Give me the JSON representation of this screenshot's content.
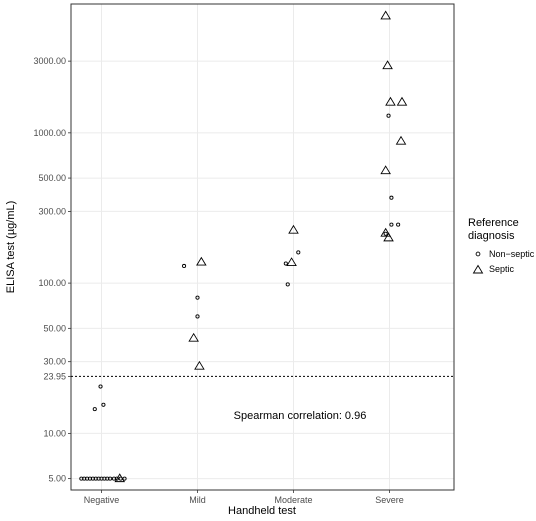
{
  "chart_data": {
    "type": "scatter",
    "xlabel": "Handheld test",
    "ylabel": "ELISA test (µg/mL)",
    "categories": [
      "Negative",
      "Mild",
      "Moderate",
      "Severe"
    ],
    "y_scale": "log10",
    "ylim": [
      4.2,
      7200
    ],
    "y_ticks": [
      5,
      10,
      30,
      50,
      100,
      300,
      500,
      1000,
      3000
    ],
    "y_tick_labels": [
      "5.00",
      "10.00",
      "30.00",
      "50.00",
      "100.00",
      "300.00",
      "500.00",
      "1000.00",
      "3000.00"
    ],
    "threshold": {
      "value": 23.95,
      "label": "23.95",
      "style": "dotted"
    },
    "grid": true,
    "annotation": "Spearman correlation: 0.96",
    "legend": {
      "title_lines": [
        "Reference",
        "diagnosis"
      ],
      "placement": "right",
      "entries": [
        {
          "label": "Non−septic",
          "marker": "dot"
        },
        {
          "label": "Septic",
          "marker": "triangle"
        }
      ]
    },
    "series": [
      {
        "name": "Non−septic",
        "marker": "dot",
        "points": [
          {
            "category": "Negative",
            "jitter": -0.21,
            "y": 5.0
          },
          {
            "category": "Negative",
            "jitter": -0.18,
            "y": 5.0
          },
          {
            "category": "Negative",
            "jitter": -0.15,
            "y": 5.0
          },
          {
            "category": "Negative",
            "jitter": -0.12,
            "y": 5.0
          },
          {
            "category": "Negative",
            "jitter": -0.09,
            "y": 5.0
          },
          {
            "category": "Negative",
            "jitter": -0.06,
            "y": 5.0
          },
          {
            "category": "Negative",
            "jitter": -0.03,
            "y": 5.0
          },
          {
            "category": "Negative",
            "jitter": 0.0,
            "y": 5.0
          },
          {
            "category": "Negative",
            "jitter": 0.03,
            "y": 5.0
          },
          {
            "category": "Negative",
            "jitter": 0.06,
            "y": 5.0
          },
          {
            "category": "Negative",
            "jitter": 0.09,
            "y": 5.0
          },
          {
            "category": "Negative",
            "jitter": 0.13,
            "y": 5.0
          },
          {
            "category": "Negative",
            "jitter": 0.16,
            "y": 5.0
          },
          {
            "category": "Negative",
            "jitter": 0.2,
            "y": 5.0
          },
          {
            "category": "Negative",
            "jitter": 0.24,
            "y": 5.0
          },
          {
            "category": "Negative",
            "jitter": -0.07,
            "y": 14.5
          },
          {
            "category": "Negative",
            "jitter": 0.02,
            "y": 15.5
          },
          {
            "category": "Negative",
            "jitter": -0.01,
            "y": 20.5
          },
          {
            "category": "Mild",
            "jitter": -0.14,
            "y": 130
          },
          {
            "category": "Mild",
            "jitter": 0.0,
            "y": 60
          },
          {
            "category": "Mild",
            "jitter": 0.0,
            "y": 80
          },
          {
            "category": "Moderate",
            "jitter": -0.08,
            "y": 135
          },
          {
            "category": "Moderate",
            "jitter": 0.05,
            "y": 160
          },
          {
            "category": "Moderate",
            "jitter": -0.06,
            "y": 98
          },
          {
            "category": "Severe",
            "jitter": -0.01,
            "y": 1300
          },
          {
            "category": "Severe",
            "jitter": 0.02,
            "y": 370
          },
          {
            "category": "Severe",
            "jitter": 0.02,
            "y": 245
          },
          {
            "category": "Severe",
            "jitter": 0.09,
            "y": 245
          },
          {
            "category": "Severe",
            "jitter": -0.04,
            "y": 213
          }
        ]
      },
      {
        "name": "Septic",
        "marker": "triangle",
        "points": [
          {
            "category": "Negative",
            "jitter": 0.19,
            "y": 5.0
          },
          {
            "category": "Mild",
            "jitter": 0.04,
            "y": 138
          },
          {
            "category": "Mild",
            "jitter": -0.04,
            "y": 43
          },
          {
            "category": "Mild",
            "jitter": 0.02,
            "y": 28
          },
          {
            "category": "Moderate",
            "jitter": 0.0,
            "y": 225
          },
          {
            "category": "Moderate",
            "jitter": -0.02,
            "y": 137
          },
          {
            "category": "Severe",
            "jitter": -0.04,
            "y": 6000
          },
          {
            "category": "Severe",
            "jitter": -0.02,
            "y": 2800
          },
          {
            "category": "Severe",
            "jitter": 0.01,
            "y": 1600
          },
          {
            "category": "Severe",
            "jitter": 0.13,
            "y": 1600
          },
          {
            "category": "Severe",
            "jitter": 0.12,
            "y": 880
          },
          {
            "category": "Severe",
            "jitter": -0.04,
            "y": 560
          },
          {
            "category": "Severe",
            "jitter": -0.04,
            "y": 215
          },
          {
            "category": "Severe",
            "jitter": -0.01,
            "y": 200
          }
        ]
      }
    ]
  }
}
